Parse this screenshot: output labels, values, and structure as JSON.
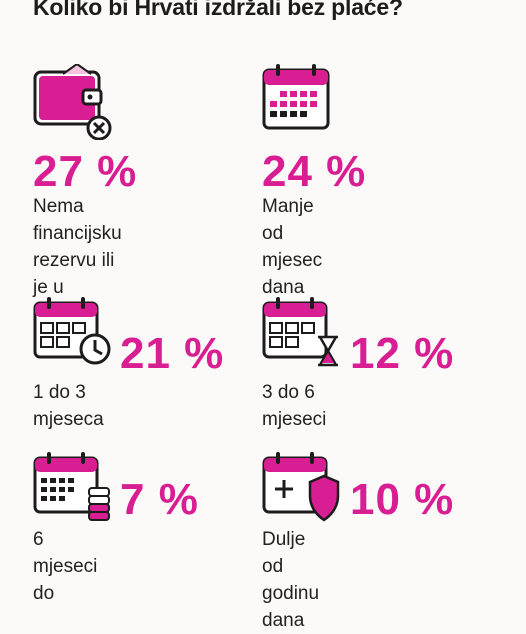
{
  "title": "Koliko bi Hrvati izdržali bez plaće?",
  "accent_color": "#d81e92",
  "items": [
    {
      "icon": "empty-wallet-icon",
      "percent": "27 %",
      "label": "Nema financijsku\nrezervu ili je u\nminusu"
    },
    {
      "icon": "calendar-icon",
      "percent": "24 %",
      "label": "Manje od\nmjesec dana"
    },
    {
      "icon": "calendar-clock-icon",
      "percent": "21 %",
      "label": "1 do 3 mjeseca"
    },
    {
      "icon": "calendar-hourglass-icon",
      "percent": "12 %",
      "label": "3 do 6 mjeseci"
    },
    {
      "icon": "calendar-coins-icon",
      "percent": "7 %",
      "label": "6 mjeseci do"
    },
    {
      "icon": "calendar-shield-icon",
      "percent": "10 %",
      "label": "Dulje od godinu dana"
    }
  ]
}
